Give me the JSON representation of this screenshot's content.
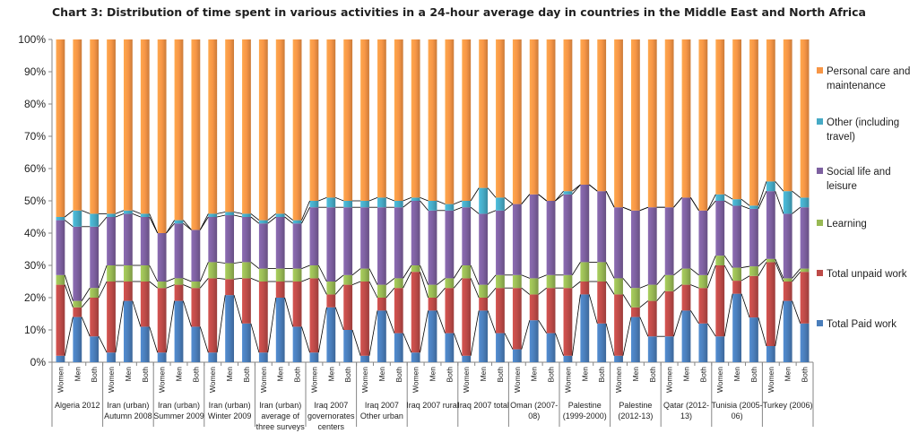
{
  "chart_data": {
    "type": "bar",
    "stacked": true,
    "title": "Chart 3: Distribution of time spent in various activities in a 24-hour average day in countries in the Middle East and North Africa",
    "ylim": [
      0,
      100
    ],
    "y_ticks": [
      "0%",
      "10%",
      "20%",
      "30%",
      "40%",
      "50%",
      "60%",
      "70%",
      "80%",
      "90%",
      "100%"
    ],
    "grid": false,
    "legend_position": "right",
    "sub_labels": [
      "Women",
      "Men",
      "Both"
    ],
    "groups": [
      {
        "label": [
          "Algeria 2012"
        ]
      },
      {
        "label": [
          "Iran (urban)",
          "Autumn 2008"
        ]
      },
      {
        "label": [
          "Iran (urban)",
          "Summer 2009"
        ]
      },
      {
        "label": [
          "Iran (urban)",
          "Winter 2009"
        ]
      },
      {
        "label": [
          "Iran (urban)",
          "average of",
          "three surveys"
        ]
      },
      {
        "label": [
          "Iraq 2007",
          "governorates",
          "centers"
        ]
      },
      {
        "label": [
          "Iraq 2007",
          "Other urban"
        ]
      },
      {
        "label": [
          "Iraq 2007 rural"
        ]
      },
      {
        "label": [
          "Iraq 2007 total"
        ]
      },
      {
        "label": [
          "Oman (2007-",
          "08)"
        ]
      },
      {
        "label": [
          "Palestine",
          "(1999-2000)"
        ]
      },
      {
        "label": [
          "Palestine",
          "(2012-13)"
        ]
      },
      {
        "label": [
          "Qatar (2012-",
          "13)"
        ]
      },
      {
        "label": [
          "Tunisia (2005-",
          "06)"
        ]
      },
      {
        "label": [
          "Turkey (2006)"
        ]
      }
    ],
    "series": [
      {
        "name": "Total Paid work",
        "color": "#4a7ebb",
        "values": [
          2,
          14,
          8,
          3,
          19,
          11,
          3,
          19,
          11,
          3,
          21,
          12,
          3,
          20,
          11,
          3,
          17,
          10,
          2,
          16,
          9,
          3,
          16,
          9,
          2,
          16,
          9,
          4,
          13,
          9,
          2,
          21,
          12,
          2,
          14,
          8,
          8,
          16,
          12,
          8,
          21,
          14,
          5,
          19,
          12
        ]
      },
      {
        "name": "Total unpaid work",
        "color": "#be4b48",
        "values": [
          22,
          3,
          12,
          22,
          6,
          14,
          20,
          5,
          12,
          23,
          5,
          14,
          22,
          5,
          14,
          23,
          4,
          14,
          23,
          4,
          14,
          25,
          4,
          14,
          24,
          4,
          14,
          19,
          8,
          14,
          21,
          4,
          13,
          19,
          3,
          11,
          14,
          8,
          11,
          22,
          4,
          13,
          26,
          6,
          16
        ]
      },
      {
        "name": "Learning",
        "color": "#98b954",
        "values": [
          3,
          2,
          3,
          5,
          5,
          5,
          2,
          2,
          2,
          5,
          5,
          5,
          4,
          4,
          4,
          4,
          4,
          3,
          4,
          4,
          3,
          2,
          4,
          3,
          4,
          4,
          4,
          4,
          5,
          4,
          4,
          6,
          6,
          5,
          6,
          5,
          5,
          5,
          4,
          3,
          4,
          3,
          1,
          1,
          1
        ]
      },
      {
        "name": "Social life and leisure",
        "color": "#7d60a0",
        "values": [
          17,
          23,
          19,
          15,
          16,
          15,
          15,
          17,
          16,
          14,
          15,
          14,
          14,
          16,
          14,
          18,
          23,
          21,
          19,
          24,
          22,
          20,
          23,
          21,
          18,
          22,
          20,
          22,
          26,
          23,
          25,
          24,
          22,
          22,
          24,
          24,
          21,
          22,
          20,
          17,
          19,
          18,
          21,
          20,
          19
        ]
      },
      {
        "name": "Other (including travel)",
        "color": "#46aac5",
        "values": [
          1,
          5,
          4,
          1,
          1,
          1,
          0,
          1,
          0,
          1,
          1,
          1,
          1,
          1,
          1,
          2,
          3,
          2,
          2,
          3,
          2,
          1,
          3,
          2,
          2,
          8,
          4,
          0,
          0,
          0,
          1,
          0,
          0,
          0,
          0,
          0,
          0,
          0,
          0,
          2,
          2,
          1,
          3,
          7,
          3
        ]
      },
      {
        "name": "Personal care and maintenance",
        "color": "#f79646",
        "values": [
          55,
          53,
          54,
          54,
          53,
          54,
          60,
          56,
          59,
          54,
          54,
          54,
          56,
          54,
          56,
          50,
          49,
          50,
          50,
          49,
          50,
          49,
          50,
          51,
          50,
          46,
          49,
          51,
          48,
          50,
          47,
          45,
          47,
          52,
          53,
          52,
          52,
          49,
          53,
          48,
          49,
          52,
          44,
          47,
          49
        ]
      }
    ]
  }
}
